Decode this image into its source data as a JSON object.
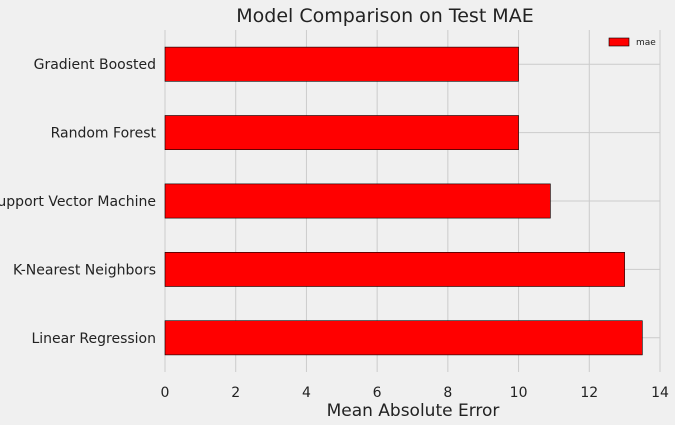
{
  "chart_data": {
    "type": "bar",
    "orientation": "horizontal",
    "title": "Model Comparison on Test MAE",
    "xlabel": "Mean Absolute Error",
    "ylabel": "",
    "categories": [
      "Gradient Boosted",
      "Random Forest",
      "Support Vector Machine",
      "K-Nearest Neighbors",
      "Linear Regression"
    ],
    "series": [
      {
        "name": "mae",
        "values": [
          10.0,
          10.0,
          10.9,
          13.0,
          13.5
        ],
        "color": "#ff0000"
      }
    ],
    "xlim": [
      0,
      14
    ],
    "xticks": [
      0,
      2,
      4,
      6,
      8,
      10,
      12,
      14
    ],
    "xtick_labels": [
      "0",
      "2",
      "4",
      "6",
      "8",
      "10",
      "12",
      "14"
    ],
    "grid": true,
    "legend_position": "top-right",
    "colors": {
      "background": "#f0f0f0",
      "grid": "#cbcbcb",
      "bar": "#ff0000",
      "bar_edge": "#000000"
    }
  }
}
